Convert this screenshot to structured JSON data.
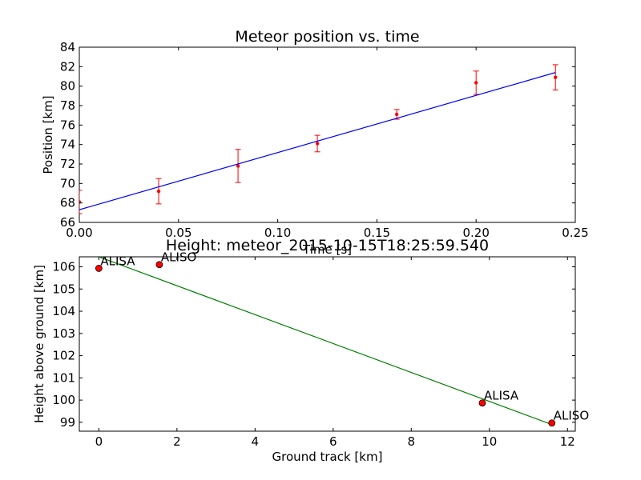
{
  "chart_data": [
    {
      "type": "scatter",
      "title": "Meteor position vs. time",
      "xlabel": "Time [s]",
      "ylabel": "Position [km]",
      "xlim": [
        0.0,
        0.25
      ],
      "ylim": [
        66,
        84
      ],
      "xticks": [
        "0.00",
        "0.05",
        "0.10",
        "0.15",
        "0.20",
        "0.25"
      ],
      "xtick_values": [
        0.0,
        0.05,
        0.1,
        0.15,
        0.2,
        0.25
      ],
      "yticks": [
        "66",
        "68",
        "70",
        "72",
        "74",
        "76",
        "78",
        "80",
        "82",
        "84"
      ],
      "ytick_values": [
        66,
        68,
        70,
        72,
        74,
        76,
        78,
        80,
        82,
        84
      ],
      "grid": false,
      "series": [
        {
          "kind": "errorbar",
          "color": "#ff0000",
          "points": [
            {
              "x": 0.0,
              "y": 68.1,
              "err": 1.2
            },
            {
              "x": 0.04,
              "y": 69.2,
              "err": 1.3
            },
            {
              "x": 0.08,
              "y": 71.8,
              "err": 1.7
            },
            {
              "x": 0.12,
              "y": 74.1,
              "err": 0.85
            },
            {
              "x": 0.16,
              "y": 77.1,
              "err": 0.5
            },
            {
              "x": 0.2,
              "y": 80.35,
              "err": 1.2
            },
            {
              "x": 0.24,
              "y": 80.9,
              "err": 1.3
            }
          ]
        },
        {
          "kind": "line",
          "color": "#0000ff",
          "x": [
            0.0,
            0.24
          ],
          "y": [
            67.3,
            81.4
          ]
        }
      ]
    },
    {
      "type": "line",
      "title": "Height: meteor_2015-10-15T18:25:59.540",
      "xlabel": "Ground track [km]",
      "ylabel": "Height above ground [km]",
      "xlim": [
        -0.5,
        12.2
      ],
      "ylim": [
        98.6,
        106.45
      ],
      "xticks": [
        "0",
        "2",
        "4",
        "6",
        "8",
        "10",
        "12"
      ],
      "xtick_values": [
        0,
        2,
        4,
        6,
        8,
        10,
        12
      ],
      "yticks": [
        "99",
        "100",
        "101",
        "102",
        "103",
        "104",
        "105",
        "106"
      ],
      "ytick_values": [
        99,
        100,
        101,
        102,
        103,
        104,
        105,
        106
      ],
      "grid": false,
      "series": [
        {
          "kind": "line",
          "color": "#008000",
          "x": [
            0.0,
            11.6
          ],
          "y": [
            106.45,
            98.9
          ]
        },
        {
          "kind": "points",
          "color": "#ff0000",
          "points": [
            {
              "x": 0.0,
              "y": 105.93,
              "label": "ALISA"
            },
            {
              "x": 1.55,
              "y": 106.1,
              "label": "ALISO"
            },
            {
              "x": 9.82,
              "y": 99.87,
              "label": "ALISA"
            },
            {
              "x": 11.6,
              "y": 98.97,
              "label": "ALISO"
            }
          ]
        }
      ]
    }
  ]
}
